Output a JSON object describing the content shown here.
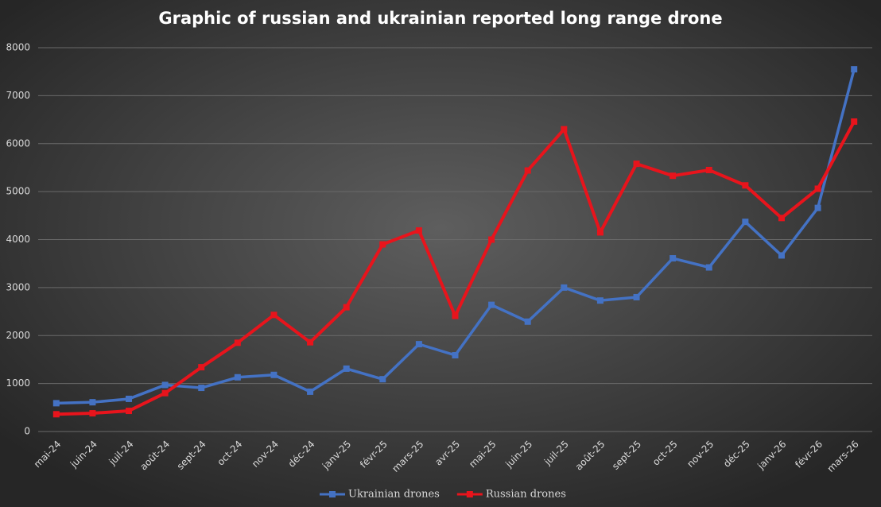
{
  "chart_data": {
    "type": "line",
    "title": "Graphic of russian and ukrainian reported long range drone",
    "categories": [
      "mai-24",
      "juin-24",
      "juil-24",
      "août-24",
      "sept-24",
      "oct-24",
      "nov-24",
      "déc-24",
      "janv-25",
      "févr-25",
      "mars-25",
      "avr-25",
      "mai-25",
      "juin-25",
      "juil-25",
      "août-25",
      "sept-25",
      "oct-25",
      "nov-25",
      "déc-25",
      "janv-26",
      "févr-26",
      "mars-26"
    ],
    "series": [
      {
        "name": "Ukrainian drones",
        "color": "#4472c4",
        "values": [
          590,
          610,
          680,
          970,
          910,
          1130,
          1180,
          830,
          1310,
          1090,
          1820,
          1590,
          2640,
          2290,
          3000,
          2730,
          2800,
          3610,
          3420,
          4370,
          3670,
          4660,
          7550
        ]
      },
      {
        "name": "Russian drones",
        "color": "#e8141c",
        "values": [
          360,
          380,
          430,
          800,
          1340,
          1850,
          2430,
          1860,
          2590,
          3900,
          4190,
          2410,
          4000,
          5440,
          6300,
          4150,
          5580,
          5330,
          5450,
          5130,
          4450,
          5060,
          6460
        ]
      }
    ],
    "ylim": [
      0,
      8000
    ],
    "yticks": [
      0,
      1000,
      2000,
      3000,
      4000,
      5000,
      6000,
      7000,
      8000
    ],
    "grid": true,
    "legend": "bottom"
  }
}
